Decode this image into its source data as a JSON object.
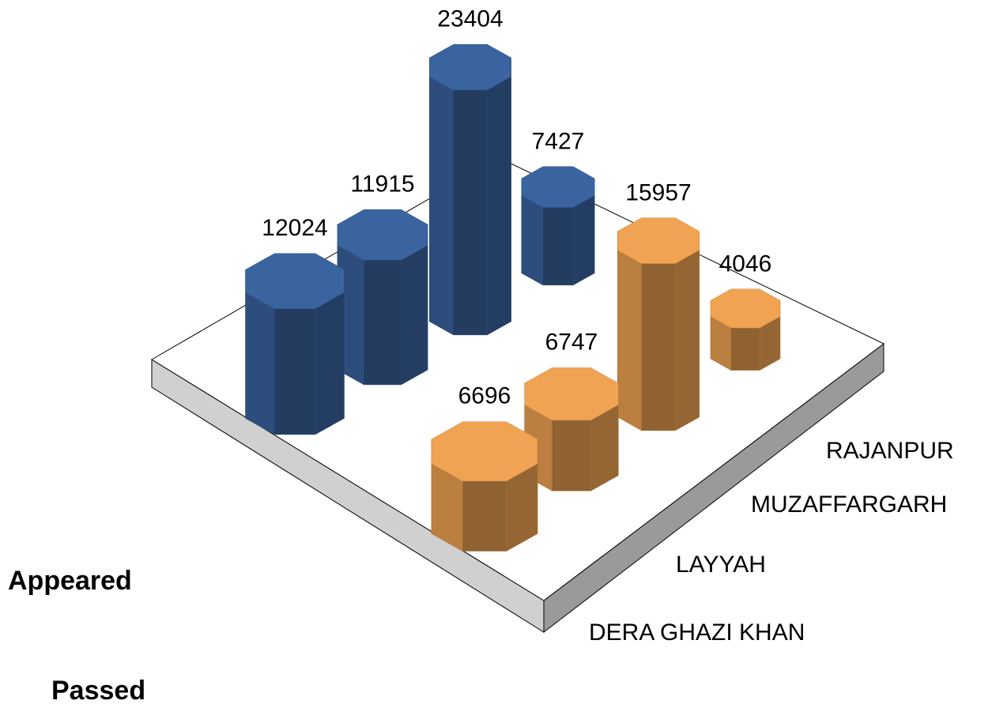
{
  "chart_data": {
    "type": "bar3d",
    "categories": [
      "DERA GHAZI KHAN",
      "LAYYAH",
      "MUZAFFARGARH",
      "RAJANPUR"
    ],
    "series": [
      {
        "name": "Appeared",
        "color": "#3a64a0",
        "values": [
          12024,
          11915,
          23404,
          7427
        ]
      },
      {
        "name": "Passed",
        "color": "#f0a352",
        "values": [
          6696,
          6747,
          15957,
          4046
        ]
      }
    ]
  }
}
